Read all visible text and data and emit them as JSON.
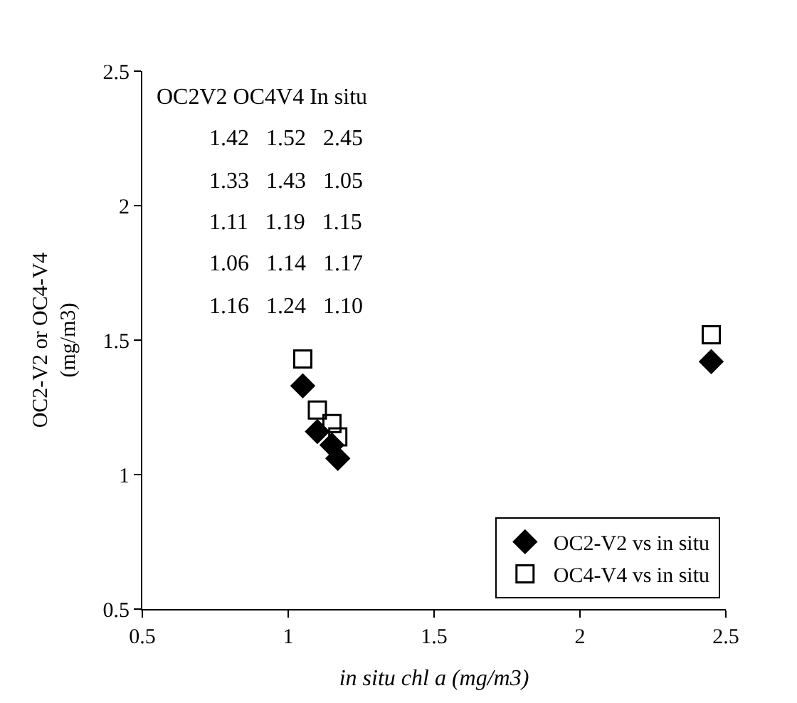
{
  "chart_data": {
    "type": "scatter",
    "xlabel": "in situ chl a (mg/m3)",
    "ylabel": "OC2-V2 or OC4-V4\n(mg/m3)",
    "xlim": [
      0.5,
      2.5
    ],
    "xticks": [
      0.5,
      1,
      1.5,
      2,
      2.5
    ],
    "ylim": [
      0.5,
      2.5
    ],
    "yticks": [
      0.5,
      1,
      1.5,
      2,
      2.5
    ],
    "legend": "bottom right",
    "series": [
      {
        "name": "OC2-V2 vs in situ",
        "color": "#000000",
        "marker": "diamond",
        "x": [
          2.45,
          1.05,
          1.15,
          1.17,
          1.1
        ],
        "values": [
          1.42,
          1.33,
          1.11,
          1.06,
          1.16
        ]
      },
      {
        "name": "OC4-V4 vs in situ",
        "color": "#000000",
        "marker": "square-open",
        "x": [
          2.45,
          1.05,
          1.15,
          1.17,
          1.1
        ],
        "values": [
          1.52,
          1.43,
          1.19,
          1.14,
          1.24
        ]
      }
    ],
    "annotations": [
      "OC2V2 OC4V4 In situ",
      "1.42   1.52   2.45",
      "1.33   1.43   1.05",
      "1.11   1.19   1.15",
      "1.06   1.14   1.17",
      "1.16   1.24   1.10"
    ]
  }
}
